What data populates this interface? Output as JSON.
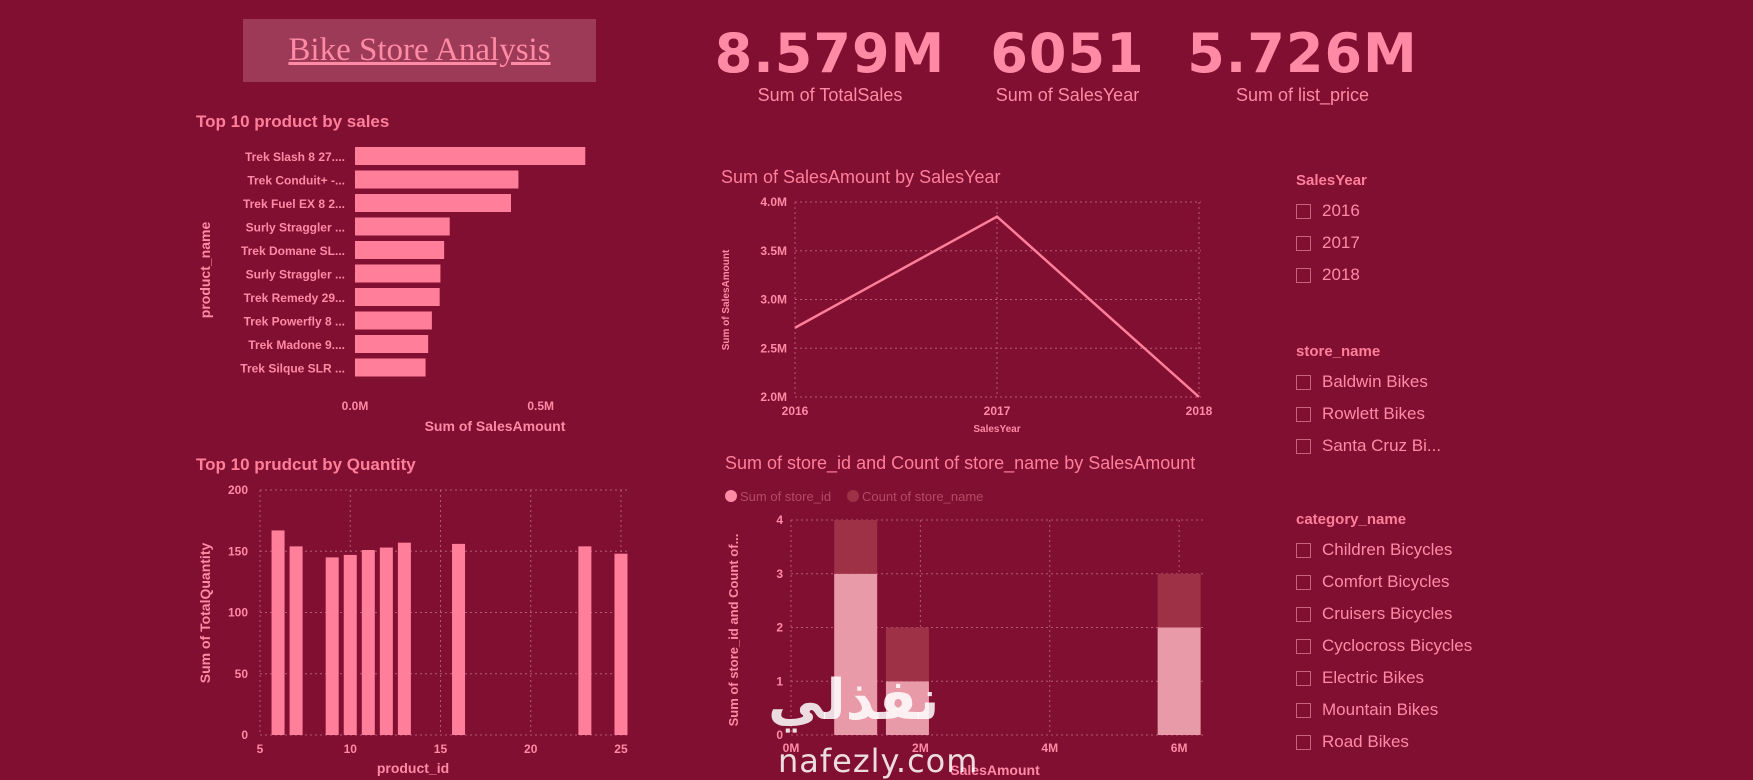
{
  "header": {
    "title": "Bike Store Analysis"
  },
  "kpis": [
    {
      "value": "8.579M",
      "label": "Sum of TotalSales"
    },
    {
      "value": "6051",
      "label": "Sum of SalesYear"
    },
    {
      "value": "5.726M",
      "label": "Sum of list_price"
    }
  ],
  "colors": {
    "background": "#810f31",
    "bar": "#ff7f9b",
    "accent": "#ff8aa5",
    "series2": "#9e3145",
    "series1_stack": "#e89aa8"
  },
  "slicers": [
    {
      "title": "SalesYear",
      "items": [
        "2016",
        "2017",
        "2018"
      ]
    },
    {
      "title": "store_name",
      "items": [
        "Baldwin Bikes",
        "Rowlett Bikes",
        "Santa Cruz Bi..."
      ]
    },
    {
      "title": "category_name",
      "items": [
        "Children Bicycles",
        "Comfort Bicycles",
        "Cruisers Bicycles",
        "Cyclocross Bicycles",
        "Electric Bikes",
        "Mountain Bikes",
        "Road Bikes"
      ]
    }
  ],
  "watermark": {
    "arabic": "نفذلي",
    "latin": "nafezly.com"
  },
  "chart_data": [
    {
      "type": "bar",
      "orientation": "horizontal",
      "title": "Top 10 product by sales",
      "xlabel": "Sum of SalesAmount",
      "ylabel": "product_name",
      "categories": [
        "Trek Slash 8 27....",
        "Trek Conduit+ -...",
        "Trek Fuel EX 8 2...",
        "Surly Straggler ...",
        "Trek Domane SL...",
        "Surly Straggler ...",
        "Trek Remedy 29...",
        "Trek Powerfly 8 ...",
        "Trek Madone 9....",
        "Trek Silque SLR ..."
      ],
      "values": [
        0.62,
        0.44,
        0.42,
        0.255,
        0.24,
        0.23,
        0.228,
        0.207,
        0.197,
        0.19
      ],
      "xlim": [
        0,
        0.7
      ],
      "xticks": [
        "0.0M",
        "0.5M"
      ],
      "xtick_values": [
        0,
        0.5
      ]
    },
    {
      "type": "line",
      "title": "Sum of SalesAmount by SalesYear",
      "xlabel": "SalesYear",
      "ylabel": "Sum of SalesAmount",
      "x": [
        "2016",
        "2017",
        "2018"
      ],
      "values": [
        2.71,
        3.85,
        2.0
      ],
      "ylim": [
        2.0,
        4.0
      ],
      "yticks": [
        "2.0M",
        "2.5M",
        "3.0M",
        "3.5M",
        "4.0M"
      ],
      "ytick_values": [
        2.0,
        2.5,
        3.0,
        3.5,
        4.0
      ]
    },
    {
      "type": "bar",
      "title": "Top 10 prudcut by Quantity",
      "xlabel": "product_id",
      "ylabel": "Sum of TotalQuantity",
      "x": [
        6,
        7,
        9,
        10,
        11,
        12,
        13,
        16,
        23,
        25
      ],
      "values": [
        167,
        154,
        145,
        147,
        151,
        153,
        157,
        156,
        154,
        148
      ],
      "xlim": [
        5,
        25.5
      ],
      "ylim": [
        0,
        200
      ],
      "xticks": [
        "5",
        "10",
        "15",
        "20",
        "25"
      ],
      "xtick_values": [
        5,
        10,
        15,
        20,
        25
      ],
      "yticks": [
        "0",
        "50",
        "100",
        "150",
        "200"
      ],
      "ytick_values": [
        0,
        50,
        100,
        150,
        200
      ]
    },
    {
      "type": "bar",
      "stacked": true,
      "title": "Sum of store_id and Count of store_name by SalesAmount",
      "xlabel": "SalesAmount",
      "ylabel": "Sum of store_id and Count of...",
      "legend": "top-left",
      "x": [
        1.0,
        1.8,
        6.0
      ],
      "series": [
        {
          "name": "Sum of store_id",
          "values": [
            3,
            1,
            2
          ]
        },
        {
          "name": "Count of store_name",
          "values": [
            1,
            1,
            1
          ]
        }
      ],
      "xlim": [
        0,
        6.4
      ],
      "ylim": [
        0,
        4
      ],
      "xticks": [
        "0M",
        "2M",
        "4M",
        "6M"
      ],
      "xtick_values": [
        0,
        2,
        4,
        6
      ],
      "yticks": [
        "0",
        "1",
        "2",
        "3",
        "4"
      ],
      "ytick_values": [
        0,
        1,
        2,
        3,
        4
      ]
    }
  ]
}
